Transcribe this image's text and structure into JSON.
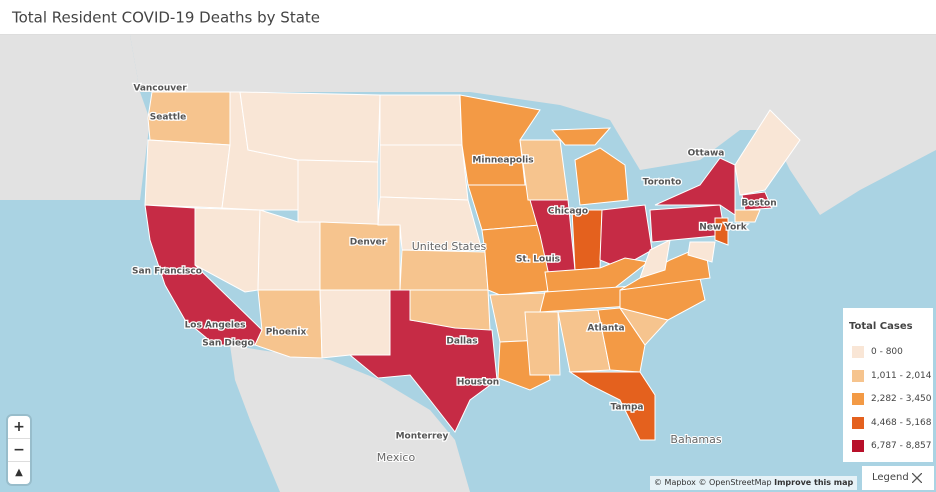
{
  "header": {
    "title": "Total Resident COVID-19 Deaths by State"
  },
  "map": {
    "labels": [
      "Vancouver",
      "Seattle",
      "Minneapolis",
      "Ottawa",
      "Toronto",
      "Chicago",
      "Boston",
      "New York",
      "Denver",
      "San Francisco",
      "St. Louis",
      "Los Angeles",
      "San Diego",
      "Phoenix",
      "Dallas",
      "Atlanta",
      "Houston",
      "Tampa",
      "Monterrey"
    ],
    "regions": [
      "United States",
      "Mexico",
      "Bahamas"
    ]
  },
  "legend": {
    "title": "Total Cases",
    "items": [
      {
        "label": "0 - 800",
        "color": "#f9e6d6"
      },
      {
        "label": "1,011 - 2,014",
        "color": "#f6c48e"
      },
      {
        "label": "2,282 - 3,450",
        "color": "#f39a45"
      },
      {
        "label": "4,468 - 5,168",
        "color": "#e4611e"
      },
      {
        "label": "6,787 - 8,857",
        "color": "#b8102a"
      }
    ],
    "toggle": "Legend"
  },
  "controls": {
    "zoom_in": "+",
    "zoom_out": "−",
    "compass": "▲"
  },
  "attribution": {
    "mapbox": "© Mapbox",
    "osm": "© OpenStreetMap",
    "improve": "Improve this map"
  }
}
